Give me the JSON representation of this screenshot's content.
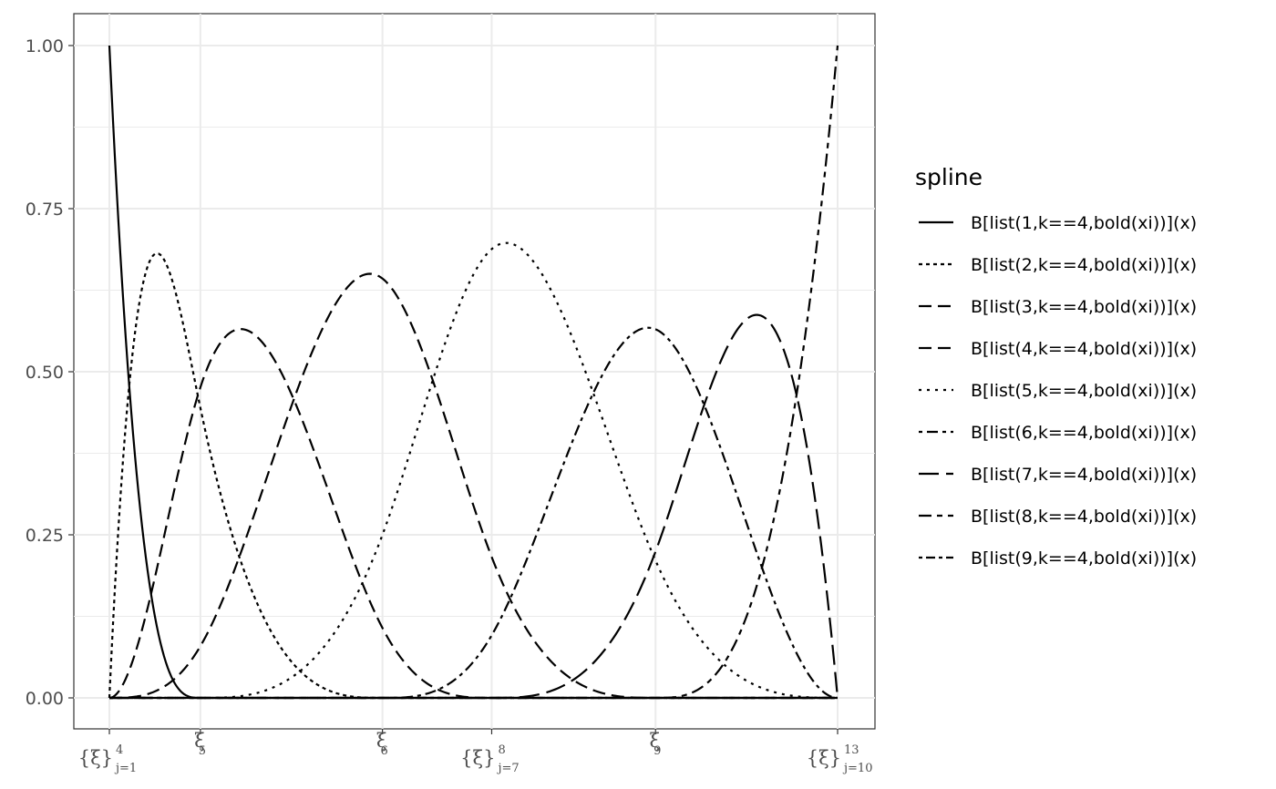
{
  "chart_data": {
    "type": "line",
    "title": "",
    "xlabel": "",
    "ylabel": "",
    "ylim": [
      0,
      1
    ],
    "xlim": [
      0,
      1
    ],
    "grid": true,
    "legend_position": "right",
    "y_ticks": [
      "0.00",
      "0.25",
      "0.50",
      "0.75",
      "1.00"
    ],
    "y_tick_values": [
      0,
      0.25,
      0.5,
      0.75,
      1
    ],
    "knots": [
      0,
      0.125,
      0.375,
      0.525,
      0.75,
      1
    ],
    "x_tick_labels": [
      {
        "x": 0,
        "main": "{ξ}",
        "sup": "4",
        "sub": "j=1"
      },
      {
        "x": 0.125,
        "main": "ξ",
        "sup": "",
        "sub": "5"
      },
      {
        "x": 0.375,
        "main": "ξ",
        "sup": "",
        "sub": "6"
      },
      {
        "x": 0.525,
        "main": "{ξ}",
        "sup": "8",
        "sub": "j=7"
      },
      {
        "x": 0.75,
        "main": "ξ",
        "sup": "",
        "sub": "9"
      },
      {
        "x": 1,
        "main": "{ξ}",
        "sup": "13",
        "sub": "j=10"
      }
    ],
    "legend_title": "spline",
    "series": [
      {
        "name": "B[list(1,k==4,bold(xi))](x)",
        "dash": "solid",
        "peak": [
          0.0,
          1.0
        ]
      },
      {
        "name": "B[list(2,k==4,bold(xi))](x)",
        "dash": "dotted",
        "peak": [
          0.065,
          0.68
        ]
      },
      {
        "name": "B[list(3,k==4,bold(xi))](x)",
        "dash": "dashed",
        "peak": [
          0.18,
          0.565
        ]
      },
      {
        "name": "B[list(4,k==4,bold(xi))](x)",
        "dash": "dashed",
        "peak": [
          0.33,
          0.555
        ]
      },
      {
        "name": "B[list(5,k==4,bold(xi))](x)",
        "dash": "dotted-sparse",
        "peak": [
          0.48,
          0.775
        ]
      },
      {
        "name": "B[list(6,k==4,bold(xi))](x)",
        "dash": "dotdash",
        "peak": [
          0.6,
          0.69
        ]
      },
      {
        "name": "B[list(7,k==4,bold(xi))](x)",
        "dash": "longdash",
        "peak": [
          0.75,
          0.5
        ]
      },
      {
        "name": "B[list(8,k==4,bold(xi))](x)",
        "dash": "twodash",
        "peak": [
          0.885,
          0.585
        ]
      },
      {
        "name": "B[list(9,k==4,bold(xi))](x)",
        "dash": "dotted-dash",
        "peak": [
          1.0,
          1.0
        ]
      }
    ]
  }
}
